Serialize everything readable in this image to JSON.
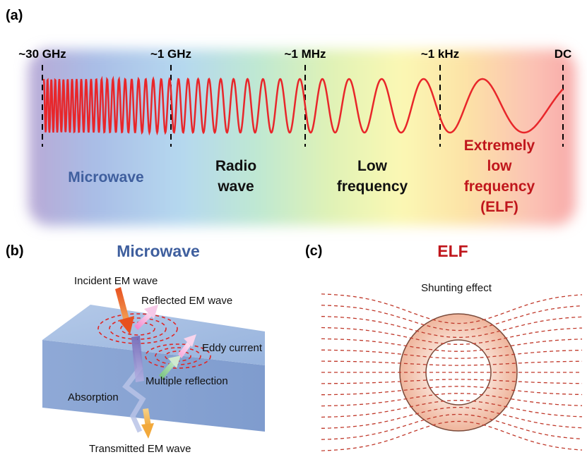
{
  "panel_a": {
    "label": "(a)",
    "freq_labels": [
      "~30 GHz",
      "~1 GHz",
      "~1 MHz",
      "~1 kHz",
      "DC"
    ],
    "regions": {
      "microwave": "Microwave",
      "radio": [
        "Radio",
        "wave"
      ],
      "low": [
        "Low",
        "frequency"
      ],
      "elf": [
        "Extremely",
        "low",
        "frequency",
        "(ELF)"
      ]
    }
  },
  "panel_b": {
    "label": "(b)",
    "title": "Microwave",
    "incident": "Incident EM wave",
    "reflected": "Reflected EM wave",
    "eddy": "Eddy current",
    "multiple": "Multiple reflection",
    "absorption": "Absorption",
    "transmitted": "Transmitted EM wave"
  },
  "panel_c": {
    "label": "(c)",
    "title": "ELF",
    "shunting": "Shunting effect"
  },
  "colors": {
    "wave": "#e8262a",
    "microwave_blue": "#3f5f9e",
    "elf_red": "#c0161c",
    "field_line": "#c0392b"
  }
}
